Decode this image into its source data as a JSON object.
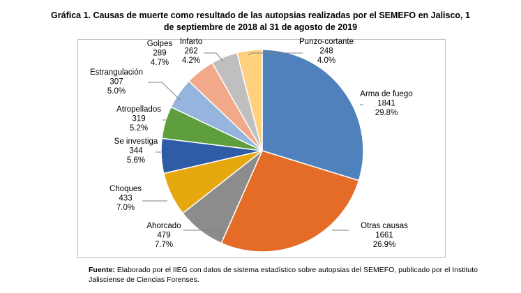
{
  "title_line1": "Gráfica 1. Causas de muerte como resultado de las autopsias realizadas por el SEMEFO en Jalisco, 1",
  "title_line2": "de septiembre de 2018 al 31 de agosto de 2019",
  "source_label": "Fuente:",
  "source_text": "Elaborado por el IIEG con datos de sistema estadístico sobre autopsias del SEMEFO, publicado por el Instituto Jalisciense de Ciencias Forenses.",
  "chart_data": {
    "type": "pie",
    "title": "Gráfica 1. Causas de muerte como resultado de las autopsias realizadas por el SEMEFO en Jalisco, 1 de septiembre de 2018 al 31 de agosto de 2019",
    "start_angle": "12 o'clock",
    "direction": "clockwise",
    "legend": "none",
    "slices": [
      {
        "label": "Arma de fuego",
        "value": 1841,
        "percent": "29.8%",
        "color": "#4f81bd"
      },
      {
        "label": "Otras causas",
        "value": 1661,
        "percent": "26.9%",
        "color": "#e46c26"
      },
      {
        "label": "Ahorcado",
        "value": 479,
        "percent": "7.7%",
        "color": "#8c8c8c"
      },
      {
        "label": "Choques",
        "value": 433,
        "percent": "7.0%",
        "color": "#e6a80f"
      },
      {
        "label": "Se investiga",
        "value": 344,
        "percent": "5.6%",
        "color": "#2f5ca7"
      },
      {
        "label": "Atropellados",
        "value": 319,
        "percent": "5.2%",
        "color": "#5e9e3c"
      },
      {
        "label": "Estrangulación",
        "value": 307,
        "percent": "5.0%",
        "color": "#95b4de"
      },
      {
        "label": "Golpes",
        "value": 289,
        "percent": "4.7%",
        "color": "#f2a98a"
      },
      {
        "label": "Infarto",
        "value": 262,
        "percent": "4.2%",
        "color": "#bfbfbf"
      },
      {
        "label": "Punzo-cortante",
        "value": 248,
        "percent": "4.0%",
        "color": "#ffd17f"
      }
    ]
  }
}
